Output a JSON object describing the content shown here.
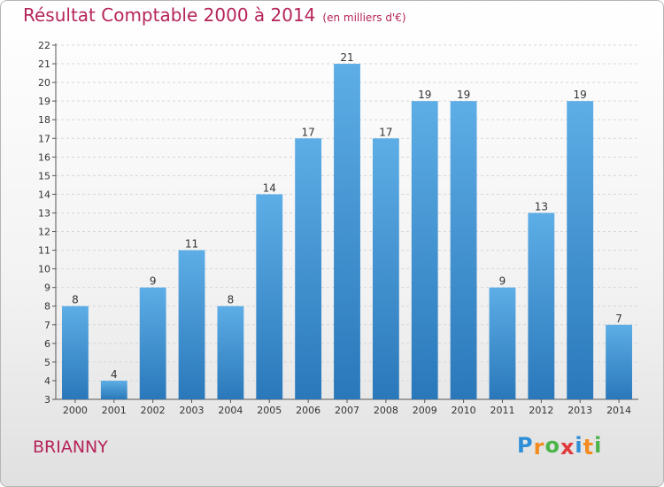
{
  "chart_data": {
    "type": "bar",
    "title": "Résultat Comptable 2000 à 2014",
    "subtitle": "(en milliers d'€)",
    "categories": [
      "2000",
      "2001",
      "2002",
      "2003",
      "2004",
      "2005",
      "2006",
      "2007",
      "2008",
      "2009",
      "2010",
      "2011",
      "2012",
      "2013",
      "2014"
    ],
    "values": [
      8,
      4,
      9,
      11,
      8,
      14,
      17,
      21,
      17,
      19,
      19,
      9,
      13,
      19,
      7
    ],
    "ylim": [
      3,
      22
    ],
    "yticks": [
      3,
      4,
      5,
      6,
      7,
      8,
      9,
      10,
      11,
      12,
      13,
      14,
      15,
      16,
      17,
      18,
      19,
      20,
      21,
      22
    ],
    "grid": true,
    "bar_color_top": "#5dade6",
    "bar_color_bottom": "#2a78ba"
  },
  "commune": "BRIANNY",
  "logo": {
    "letters": [
      "P",
      "r",
      "o",
      "x",
      "i",
      "t",
      "i"
    ],
    "colors": [
      "#2e8fd8",
      "#f28c1e",
      "#4bb54a",
      "#e03a3a",
      "#2e8fd8",
      "#f28c1e",
      "#4bb54a"
    ]
  }
}
